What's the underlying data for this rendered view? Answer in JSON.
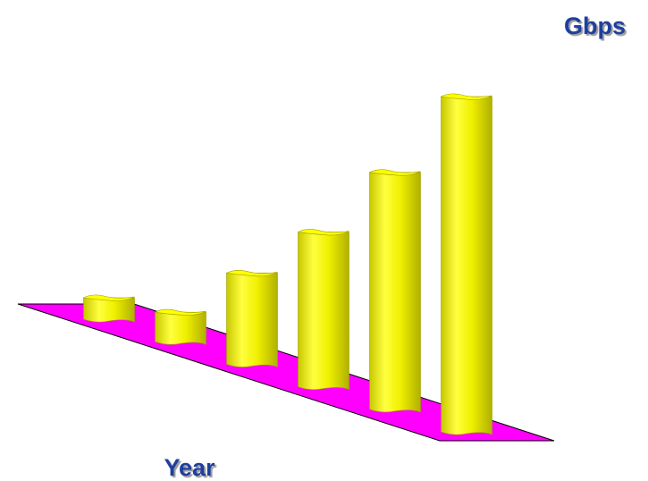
{
  "chart_data": {
    "type": "bar",
    "y_label": "Gbps",
    "x_label": "Year",
    "categories": [
      null,
      null,
      null,
      null,
      null,
      null
    ],
    "values": [
      24,
      33,
      102,
      173,
      265,
      375
    ],
    "color": "#ffff00",
    "floor_color": "#ff00ff"
  }
}
